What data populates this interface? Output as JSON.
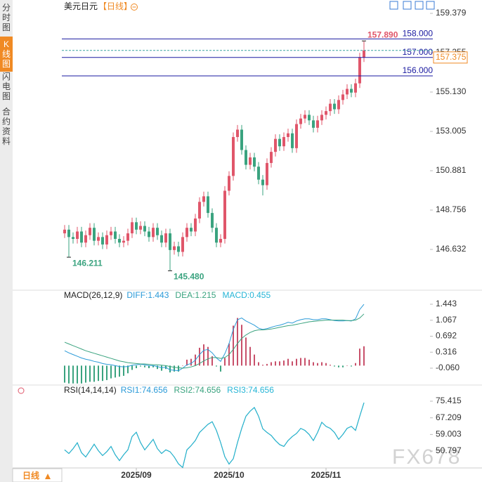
{
  "header": {
    "symbol": "美元日元",
    "period": "【日线】"
  },
  "sidebar": [
    "分时图",
    "K线图",
    "闪电图",
    "合约资料"
  ],
  "footer": {
    "period_button": "日线"
  },
  "watermark": "FX678",
  "chart_data": [
    {
      "type": "candlestick",
      "categories": [
        null,
        null,
        null,
        null,
        null,
        null,
        null,
        null,
        null,
        null,
        null,
        null,
        null,
        null,
        null,
        null,
        null,
        "2025/09",
        null,
        null,
        null,
        null,
        null,
        null,
        null,
        null,
        null,
        null,
        null,
        null,
        null,
        null,
        null,
        null,
        null,
        null,
        null,
        null,
        null,
        "2025/10",
        null,
        null,
        null,
        null,
        null,
        null,
        null,
        null,
        null,
        null,
        null,
        null,
        null,
        null,
        null,
        null,
        null,
        null,
        null,
        null,
        null,
        null,
        "2025/11",
        null,
        null,
        null,
        null,
        null,
        null,
        null,
        null,
        null
      ],
      "open": [
        147.5,
        147.7,
        147.3,
        147.2,
        147.6,
        147.0,
        147.4,
        147.8,
        147.1,
        147.3,
        146.9,
        147.4,
        147.6,
        147.2,
        147.0,
        147.1,
        147.5,
        148.1,
        147.7,
        147.9,
        147.6,
        147.3,
        147.8,
        147.4,
        147.0,
        147.5,
        146.6,
        146.8,
        146.5,
        147.3,
        147.8,
        147.6,
        148.3,
        149.2,
        149.5,
        148.6,
        147.8,
        147.0,
        147.2,
        149.8,
        150.6,
        152.7,
        153.1,
        152.0,
        151.2,
        151.6,
        151.1,
        150.4,
        150.1,
        151.3,
        151.9,
        152.6,
        152.2,
        152.7,
        152.9,
        152.1,
        153.4,
        153.7,
        153.9,
        153.6,
        153.2,
        153.6,
        153.9,
        154.1,
        154.5,
        154.2,
        154.7,
        155.0,
        155.3,
        155.1,
        155.6,
        157.0
      ],
      "high": [
        147.95,
        147.95,
        147.55,
        147.85,
        147.85,
        147.65,
        148.05,
        148.05,
        147.55,
        147.55,
        147.65,
        147.85,
        147.85,
        147.45,
        147.35,
        147.75,
        148.35,
        148.35,
        148.15,
        148.15,
        147.85,
        148.05,
        148.05,
        147.65,
        147.75,
        147.75,
        147.05,
        147.05,
        147.55,
        148.05,
        148.05,
        148.55,
        149.45,
        149.75,
        149.75,
        148.85,
        148.05,
        147.45,
        150.05,
        150.85,
        152.95,
        153.35,
        153.35,
        152.25,
        151.85,
        151.85,
        151.35,
        150.65,
        151.55,
        152.15,
        152.85,
        152.85,
        152.95,
        153.15,
        153.15,
        153.65,
        153.95,
        154.15,
        154.15,
        153.85,
        153.85,
        154.15,
        154.35,
        154.75,
        154.75,
        154.95,
        155.25,
        155.55,
        155.55,
        155.85,
        157.25,
        157.89
      ],
      "low": [
        147.25,
        146.211,
        146.95,
        146.95,
        146.75,
        146.75,
        147.15,
        146.85,
        146.85,
        146.65,
        146.65,
        147.15,
        146.95,
        146.75,
        146.75,
        146.85,
        147.25,
        147.45,
        147.45,
        147.35,
        147.05,
        147.05,
        147.15,
        146.75,
        146.75,
        145.48,
        146.35,
        146.25,
        146.25,
        147.05,
        147.35,
        147.35,
        148.05,
        148.95,
        148.35,
        147.55,
        146.75,
        146.75,
        146.95,
        149.55,
        150.35,
        152.45,
        151.75,
        150.95,
        150.95,
        150.85,
        150.15,
        149.55,
        149.85,
        151.05,
        151.65,
        151.95,
        151.95,
        152.45,
        151.85,
        151.85,
        153.15,
        153.45,
        153.35,
        152.95,
        152.95,
        153.35,
        153.65,
        153.85,
        153.95,
        153.95,
        154.45,
        154.75,
        154.85,
        154.85,
        155.35,
        156.75
      ],
      "close": [
        147.7,
        147.3,
        147.2,
        147.6,
        147.0,
        147.4,
        147.8,
        147.1,
        147.3,
        146.9,
        147.4,
        147.6,
        147.2,
        147.0,
        147.1,
        147.5,
        148.1,
        147.7,
        147.9,
        147.6,
        147.3,
        147.8,
        147.4,
        147.0,
        147.5,
        146.6,
        146.8,
        146.5,
        147.3,
        147.8,
        147.6,
        148.3,
        149.2,
        149.5,
        148.6,
        147.8,
        147.0,
        147.2,
        149.8,
        150.6,
        152.7,
        153.1,
        152.0,
        151.2,
        151.6,
        151.1,
        150.4,
        150.1,
        151.3,
        151.9,
        152.6,
        152.2,
        152.7,
        152.9,
        152.1,
        153.4,
        153.7,
        153.9,
        153.6,
        153.2,
        153.6,
        153.9,
        154.1,
        154.5,
        154.2,
        154.7,
        155.0,
        155.3,
        155.1,
        155.6,
        157.0,
        157.375
      ],
      "up_color": "#e0566a",
      "down_color": "#3aa37f",
      "ylim": [
        144.545,
        159.72
      ],
      "yticks": [
        146.632,
        148.756,
        150.881,
        153.005,
        155.13,
        157.255,
        159.379
      ],
      "ytick_labels": [
        "146.632",
        "148.756",
        "150.881",
        "153.005",
        "155.130",
        "157.255",
        "159.379"
      ],
      "hlines": [
        {
          "value": 158.0,
          "label": "158.000"
        },
        {
          "value": 157.0,
          "label": "157.000"
        },
        {
          "value": 156.0,
          "label": "156.000"
        }
      ],
      "hline_color": "#1a1aa0",
      "last_price": {
        "value": 157.375,
        "label": "157.375"
      },
      "last_price_color": "#f08a24",
      "annotations": [
        {
          "value": 157.89,
          "label": "157.890",
          "color": "#e0566a"
        },
        {
          "value": 146.211,
          "label": "146.211",
          "color": "#3aa37f"
        },
        {
          "value": 145.48,
          "label": "145.480",
          "color": "#3aa37f"
        }
      ]
    },
    {
      "type": "macd",
      "title": "MACD(26,12,9)",
      "ylim": [
        -0.407,
        1.691
      ],
      "yticks": [
        {
          "value": -0.06,
          "label": "-0.060"
        },
        0.316,
        0.692,
        1.067,
        1.443
      ],
      "up_color": "#c8506a",
      "down_color": "#3aa37f",
      "series": [
        {
          "name": "DIFF:1.443",
          "color": "#2a9ad8",
          "values": [
            0.35,
            0.3,
            0.26,
            0.22,
            0.18,
            0.15,
            0.13,
            0.1,
            0.08,
            0.05,
            0.03,
            0.02,
            0.0,
            -0.02,
            -0.03,
            -0.02,
            0.01,
            0.02,
            0.03,
            0.02,
            0.0,
            0.0,
            -0.02,
            -0.05,
            -0.04,
            -0.1,
            -0.11,
            -0.12,
            -0.06,
            0.02,
            0.05,
            0.13,
            0.26,
            0.36,
            0.38,
            0.3,
            0.18,
            0.1,
            0.28,
            0.52,
            0.85,
            1.08,
            1.12,
            1.05,
            1.0,
            0.95,
            0.88,
            0.85,
            0.87,
            0.9,
            0.93,
            0.95,
            0.98,
            1.02,
            1.0,
            1.05,
            1.08,
            1.1,
            1.1,
            1.08,
            1.08,
            1.1,
            1.1,
            1.08,
            1.06,
            1.05,
            1.05,
            1.06,
            1.05,
            1.1,
            1.32,
            1.443
          ]
        },
        {
          "name": "DEA:1.215",
          "color": "#3aa37f",
          "values": [
            0.55,
            0.51,
            0.47,
            0.43,
            0.39,
            0.35,
            0.32,
            0.29,
            0.26,
            0.23,
            0.2,
            0.17,
            0.14,
            0.11,
            0.09,
            0.07,
            0.06,
            0.05,
            0.04,
            0.04,
            0.03,
            0.02,
            0.02,
            0.01,
            0.0,
            -0.02,
            -0.04,
            -0.05,
            -0.06,
            -0.05,
            -0.03,
            0.0,
            0.05,
            0.11,
            0.16,
            0.19,
            0.19,
            0.17,
            0.19,
            0.26,
            0.38,
            0.52,
            0.64,
            0.72,
            0.78,
            0.82,
            0.84,
            0.84,
            0.85,
            0.86,
            0.88,
            0.9,
            0.92,
            0.94,
            0.95,
            0.97,
            0.99,
            1.01,
            1.03,
            1.04,
            1.05,
            1.06,
            1.07,
            1.07,
            1.07,
            1.07,
            1.07,
            1.06,
            1.06,
            1.07,
            1.12,
            1.215
          ]
        },
        {
          "name": "MACD:0.455",
          "color": "#26b5d6",
          "bar": true,
          "values": [
            -0.4,
            -0.42,
            -0.42,
            -0.42,
            -0.42,
            -0.4,
            -0.38,
            -0.38,
            -0.36,
            -0.36,
            -0.34,
            -0.3,
            -0.28,
            -0.26,
            -0.24,
            -0.18,
            -0.1,
            -0.06,
            -0.02,
            -0.04,
            -0.06,
            -0.04,
            -0.08,
            -0.12,
            -0.08,
            -0.16,
            -0.14,
            -0.14,
            0.0,
            0.14,
            0.16,
            0.26,
            0.42,
            0.5,
            0.44,
            0.22,
            -0.02,
            -0.14,
            0.18,
            0.52,
            0.94,
            1.12,
            0.96,
            0.66,
            0.44,
            0.26,
            0.08,
            0.02,
            0.04,
            0.08,
            0.1,
            0.1,
            0.12,
            0.16,
            0.1,
            0.16,
            0.18,
            0.18,
            0.14,
            0.08,
            0.06,
            0.08,
            0.06,
            0.02,
            -0.02,
            -0.04,
            -0.04,
            0.0,
            -0.02,
            0.06,
            0.4,
            0.455
          ]
        }
      ]
    },
    {
      "type": "rsi",
      "title": "RSI(14,14,14)",
      "ylim": [
        42.475,
        81.66
      ],
      "yticks": [
        50.797,
        59.003,
        67.209,
        75.415
      ],
      "series": [
        {
          "name": "RSI1:74.656",
          "color": "#2a9ad8",
          "values": [
            51.4,
            49.6,
            52,
            54.9,
            50,
            47.9,
            51,
            54.2,
            51,
            48.6,
            50.5,
            53.1,
            49,
            46.1,
            49,
            51.4,
            58,
            60.1,
            55,
            51.4,
            54,
            56.6,
            52,
            49.6,
            51.4,
            50.5,
            47.9,
            44.5,
            42.7,
            51.4,
            53.5,
            56,
            60,
            62,
            64,
            65.3,
            61,
            55,
            48,
            44.4,
            47,
            55,
            62,
            68,
            70.5,
            72.3,
            68,
            61.8,
            60,
            58.5,
            56,
            54,
            53.1,
            56,
            58,
            59.5,
            62,
            61,
            59,
            56,
            60,
            65,
            63,
            62,
            60,
            56.6,
            59,
            62,
            63,
            61,
            68,
            74.656
          ]
        },
        {
          "name": "RSI2:74.656",
          "color": "#3aa37f",
          "values": [
            51.4,
            49.6,
            52,
            54.9,
            50,
            47.9,
            51,
            54.2,
            51,
            48.6,
            50.5,
            53.1,
            49,
            46.1,
            49,
            51.4,
            58,
            60.1,
            55,
            51.4,
            54,
            56.6,
            52,
            49.6,
            51.4,
            50.5,
            47.9,
            44.5,
            42.7,
            51.4,
            53.5,
            56,
            60,
            62,
            64,
            65.3,
            61,
            55,
            48,
            44.4,
            47,
            55,
            62,
            68,
            70.5,
            72.3,
            68,
            61.8,
            60,
            58.5,
            56,
            54,
            53.1,
            56,
            58,
            59.5,
            62,
            61,
            59,
            56,
            60,
            65,
            63,
            62,
            60,
            56.6,
            59,
            62,
            63,
            61,
            68,
            74.656
          ]
        },
        {
          "name": "RSI3:74.656",
          "color": "#26b5d6",
          "values": [
            51.4,
            49.6,
            52,
            54.9,
            50,
            47.9,
            51,
            54.2,
            51,
            48.6,
            50.5,
            53.1,
            49,
            46.1,
            49,
            51.4,
            58,
            60.1,
            55,
            51.4,
            54,
            56.6,
            52,
            49.6,
            51.4,
            50.5,
            47.9,
            44.5,
            42.7,
            51.4,
            53.5,
            56,
            60,
            62,
            64,
            65.3,
            61,
            55,
            48,
            44.4,
            47,
            55,
            62,
            68,
            70.5,
            72.3,
            68,
            61.8,
            60,
            58.5,
            56,
            54,
            53.1,
            56,
            58,
            59.5,
            62,
            61,
            59,
            56,
            60,
            65,
            63,
            62,
            60,
            56.6,
            59,
            62,
            63,
            61,
            68,
            74.656
          ]
        }
      ]
    }
  ]
}
